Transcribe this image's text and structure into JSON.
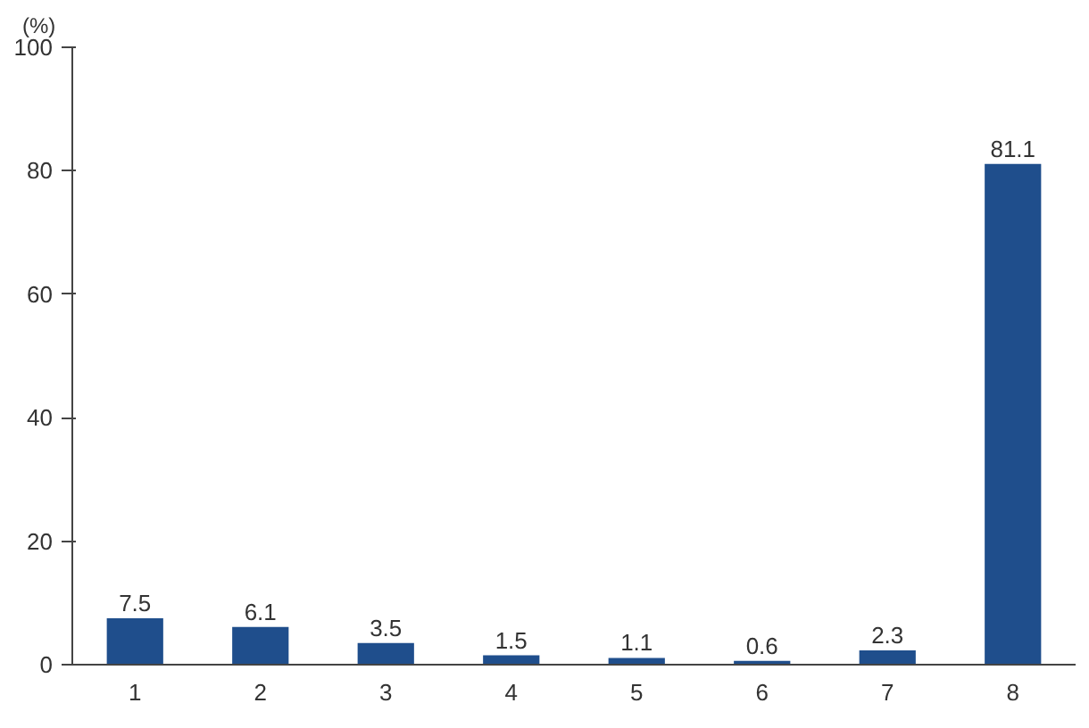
{
  "chart_data": {
    "type": "bar",
    "ylabel": "(%)",
    "categories": [
      "1",
      "2",
      "3",
      "4",
      "5",
      "6",
      "7",
      "8"
    ],
    "values": [
      7.5,
      6.1,
      3.5,
      1.5,
      1.1,
      0.6,
      2.3,
      81.1
    ],
    "color": "#1f4e8c",
    "ylim": [
      0,
      100
    ],
    "yticks": [
      0,
      20,
      40,
      60,
      80,
      100
    ],
    "data_labels": true,
    "grid": false
  }
}
